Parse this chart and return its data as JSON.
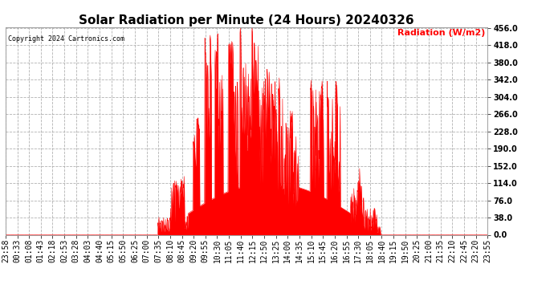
{
  "title": "Solar Radiation per Minute (24 Hours) 20240326",
  "ylabel": "Radiation (W/m2)",
  "ylabel_color": "red",
  "copyright_text": "Copyright 2024 Cartronics.com",
  "ylim": [
    0.0,
    456.0
  ],
  "yticks": [
    0.0,
    38.0,
    76.0,
    114.0,
    152.0,
    190.0,
    228.0,
    266.0,
    304.0,
    342.0,
    380.0,
    418.0,
    456.0
  ],
  "background_color": "#ffffff",
  "plot_color": "red",
  "grid_color": "#aaaaaa",
  "hline_color": "red",
  "hline_style": "--",
  "title_fontsize": 11,
  "tick_fontsize": 7,
  "x_tick_labels": [
    "23:58",
    "00:33",
    "01:08",
    "01:43",
    "02:18",
    "02:53",
    "03:28",
    "04:03",
    "04:40",
    "05:15",
    "05:50",
    "06:25",
    "07:00",
    "07:35",
    "08:10",
    "08:45",
    "09:20",
    "09:55",
    "10:30",
    "11:05",
    "11:40",
    "12:15",
    "12:50",
    "13:25",
    "14:00",
    "14:35",
    "15:10",
    "15:45",
    "16:20",
    "16:55",
    "17:30",
    "18:05",
    "18:40",
    "19:15",
    "19:50",
    "20:25",
    "21:00",
    "21:35",
    "22:10",
    "22:45",
    "23:20",
    "23:55"
  ]
}
